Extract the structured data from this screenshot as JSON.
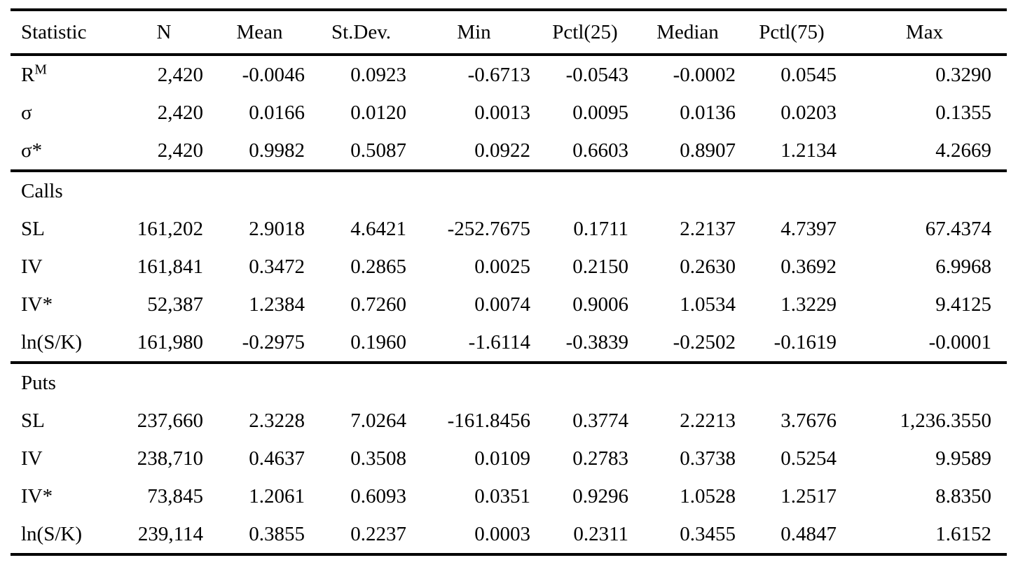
{
  "page": {
    "background_color": "#ffffff",
    "text_color": "#000000"
  },
  "table": {
    "title": "summary-statistics",
    "columns": [
      "Statistic",
      "N",
      "Mean",
      "St.Dev.",
      "Min",
      "Pctl(25)",
      "Median",
      "Pctl(75)",
      "Max"
    ],
    "sections": [
      {
        "title": "",
        "rows": [
          {
            "label": "R",
            "label_sup": "M",
            "values": [
              "2,420",
              "-0.0046",
              "0.0923",
              "-0.6713",
              "-0.0543",
              "-0.0002",
              "0.0545",
              "0.3290"
            ]
          },
          {
            "label": "σ",
            "label_sup": "",
            "values": [
              "2,420",
              "0.0166",
              "0.0120",
              "0.0013",
              "0.0095",
              "0.0136",
              "0.0203",
              "0.1355"
            ]
          },
          {
            "label": "σ*",
            "label_sup": "",
            "values": [
              "2,420",
              "0.9982",
              "0.5087",
              "0.0922",
              "0.6603",
              "0.8907",
              "1.2134",
              "4.2669"
            ]
          }
        ]
      },
      {
        "title": "Calls",
        "rows": [
          {
            "label": "SL",
            "label_sup": "",
            "values": [
              "161,202",
              "2.9018",
              "4.6421",
              "-252.7675",
              "0.1711",
              "2.2137",
              "4.7397",
              "67.4374"
            ]
          },
          {
            "label": "IV",
            "label_sup": "",
            "values": [
              "161,841",
              "0.3472",
              "0.2865",
              "0.0025",
              "0.2150",
              "0.2630",
              "0.3692",
              "6.9968"
            ]
          },
          {
            "label": "IV*",
            "label_sup": "",
            "values": [
              "52,387",
              "1.2384",
              "0.7260",
              "0.0074",
              "0.9006",
              "1.0534",
              "1.3229",
              "9.4125"
            ]
          },
          {
            "label": "ln(S/K)",
            "label_sup": "",
            "values": [
              "161,980",
              "-0.2975",
              "0.1960",
              "-1.6114",
              "-0.3839",
              "-0.2502",
              "-0.1619",
              "-0.0001"
            ]
          }
        ]
      },
      {
        "title": "Puts",
        "rows": [
          {
            "label": "SL",
            "label_sup": "",
            "values": [
              "237,660",
              "2.3228",
              "7.0264",
              "-161.8456",
              "0.3774",
              "2.2213",
              "3.7676",
              "1,236.3550"
            ]
          },
          {
            "label": "IV",
            "label_sup": "",
            "values": [
              "238,710",
              "0.4637",
              "0.3508",
              "0.0109",
              "0.2783",
              "0.3738",
              "0.5254",
              "9.9589"
            ]
          },
          {
            "label": "IV*",
            "label_sup": "",
            "values": [
              "73,845",
              "1.2061",
              "0.6093",
              "0.0351",
              "0.9296",
              "1.0528",
              "1.2517",
              "8.8350"
            ]
          },
          {
            "label": "ln(S/K)",
            "label_sup": "",
            "values": [
              "239,114",
              "0.3855",
              "0.2237",
              "0.0003",
              "0.2311",
              "0.3455",
              "0.4847",
              "1.6152"
            ]
          }
        ]
      }
    ]
  }
}
